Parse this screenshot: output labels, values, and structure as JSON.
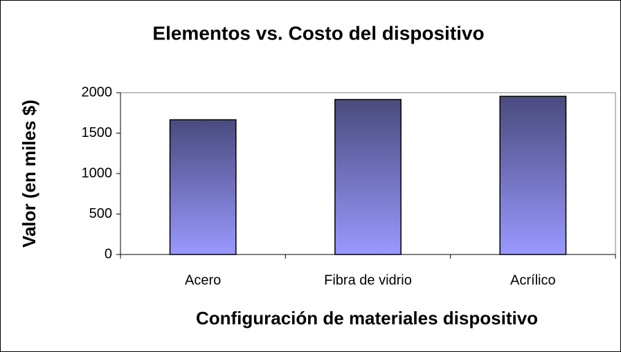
{
  "chart_data": {
    "type": "bar",
    "title": "Elementos vs. Costo del dispositivo",
    "x_label": "Configuración de materiales dispositivo",
    "y_label": "Valor (en miles $)",
    "categories": [
      "Acero",
      "Fibra de vidrio",
      "Acrílico"
    ],
    "values": [
      1665,
      1915,
      1955
    ],
    "color": "#9999ff",
    "ylim": [
      0,
      2000
    ],
    "yticks": [
      0,
      500,
      1000,
      1500,
      2000
    ],
    "grid": false
  }
}
